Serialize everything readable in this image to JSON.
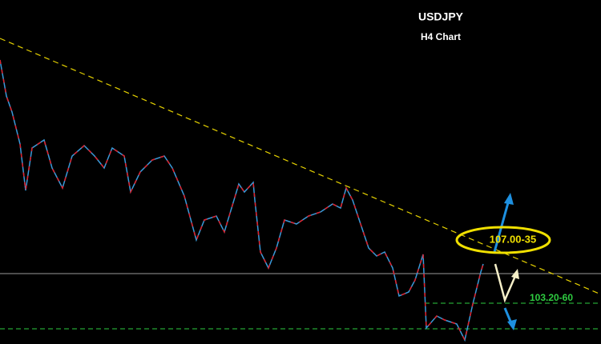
{
  "header": {
    "title": "USDJPY",
    "subtitle": "H4 Chart"
  },
  "annotations": [
    {
      "label": "107.00-35"
    },
    {
      "label": "103.20-60"
    }
  ]
}
